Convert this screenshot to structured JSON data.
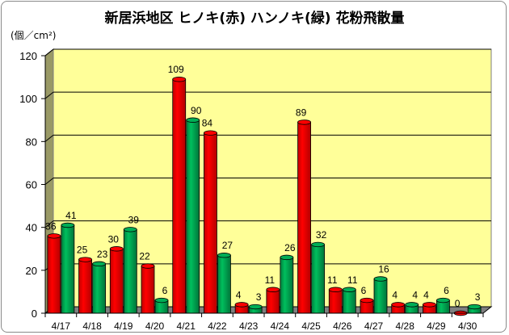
{
  "chart_data": {
    "type": "bar",
    "title": "新居浜地区 ヒノキ(赤) ハンノキ(緑) 花粉飛散量",
    "ylabel": "(個／cm²)",
    "ylim": [
      0,
      120
    ],
    "yticks": [
      0,
      20,
      40,
      60,
      80,
      100,
      120
    ],
    "grid": true,
    "legend": "none",
    "categories": [
      "4/17",
      "4/18",
      "4/19",
      "4/20",
      "4/21",
      "4/22",
      "4/23",
      "4/24",
      "4/25",
      "4/26",
      "4/27",
      "4/28",
      "4/29",
      "4/30"
    ],
    "series": [
      {
        "color": "#ff0000",
        "values": [
          36,
          25,
          30,
          22,
          109,
          84,
          4,
          11,
          89,
          11,
          6,
          4,
          4,
          0
        ]
      },
      {
        "color": "#00a651",
        "values": [
          41,
          23,
          39,
          6,
          90,
          27,
          3,
          26,
          32,
          11,
          16,
          4,
          6,
          3
        ]
      }
    ]
  },
  "colors": {
    "plot_back": "#ffff99",
    "plot_side": "#999966",
    "floor": "#7f7f7f",
    "grid": "#000000"
  }
}
